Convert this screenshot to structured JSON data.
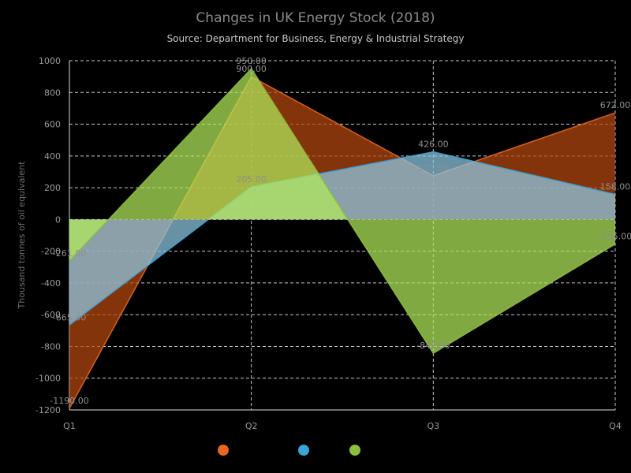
{
  "chart_data": {
    "type": "area",
    "title": "Changes in UK Energy Stock (2018)",
    "subtitle": "Source: Department for Business, Energy & Industrial Strategy",
    "xlabel": "",
    "ylabel": "Thousand tonnes of oil equivalent",
    "categories": [
      "Q1",
      "Q2",
      "Q3",
      "Q4"
    ],
    "ylim": [
      -1200,
      1000
    ],
    "yticks": [
      -1200,
      -1000,
      -800,
      -600,
      -400,
      -200,
      0,
      200,
      400,
      600,
      800,
      1000
    ],
    "grid": true,
    "legend_position": "bottom",
    "series": [
      {
        "color": "#e8671f",
        "fill": "#b5480f",
        "values": [
          -1190,
          900,
          275,
          672
        ],
        "value_labels": [
          "-1190.00",
          "900.00",
          "275.00",
          "672.00"
        ]
      },
      {
        "color": "#3aa4d8",
        "fill": "#8fcbe6",
        "values": [
          -665,
          205,
          426,
          158
        ],
        "value_labels": [
          "-665.00",
          "205.00",
          "426.00",
          "158.00"
        ]
      },
      {
        "color": "#8cbf3a",
        "fill": "#b2ea5a",
        "values": [
          -261,
          950,
          -843,
          -155
        ],
        "value_labels": [
          "-261.00",
          "950.00",
          "-843.00",
          "-155.00"
        ]
      }
    ]
  }
}
